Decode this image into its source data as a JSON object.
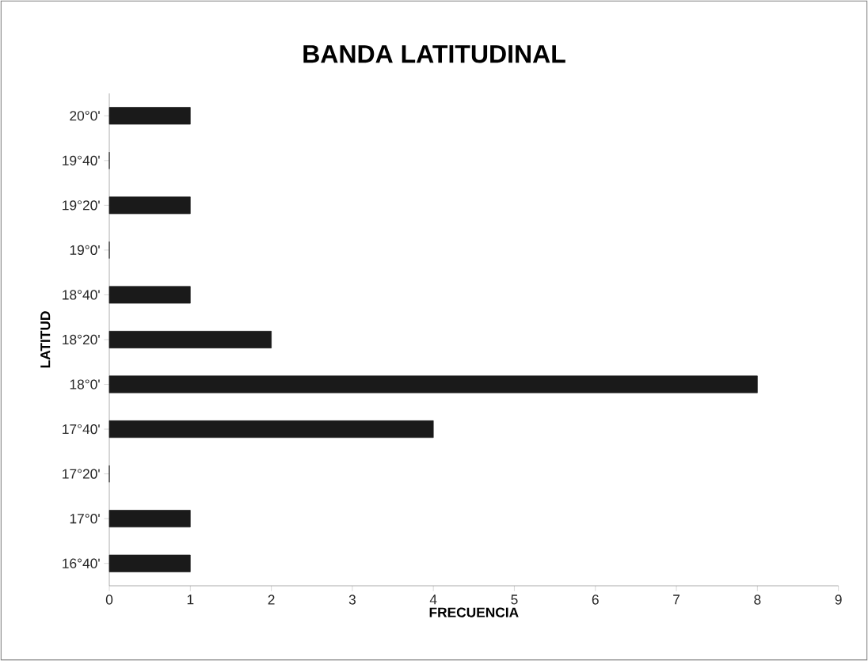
{
  "chart_data": {
    "type": "bar",
    "orientation": "horizontal",
    "title": "BANDA LATITUDINAL",
    "xlabel": "FRECUENCIA",
    "ylabel": "LATITUD",
    "categories": [
      "20°0'",
      "19°40'",
      "19°20'",
      "19°0'",
      "18°40'",
      "18°20'",
      "18°0'",
      "17°40'",
      "17°20'",
      "17°0'",
      "16°40'"
    ],
    "values": [
      1,
      0,
      1,
      0,
      1,
      2,
      8,
      4,
      0,
      1,
      1
    ],
    "color": "#1a1a1a",
    "xlim": [
      0,
      9
    ],
    "xticks": [
      0,
      1,
      2,
      3,
      4,
      5,
      6,
      7,
      8,
      9
    ]
  }
}
